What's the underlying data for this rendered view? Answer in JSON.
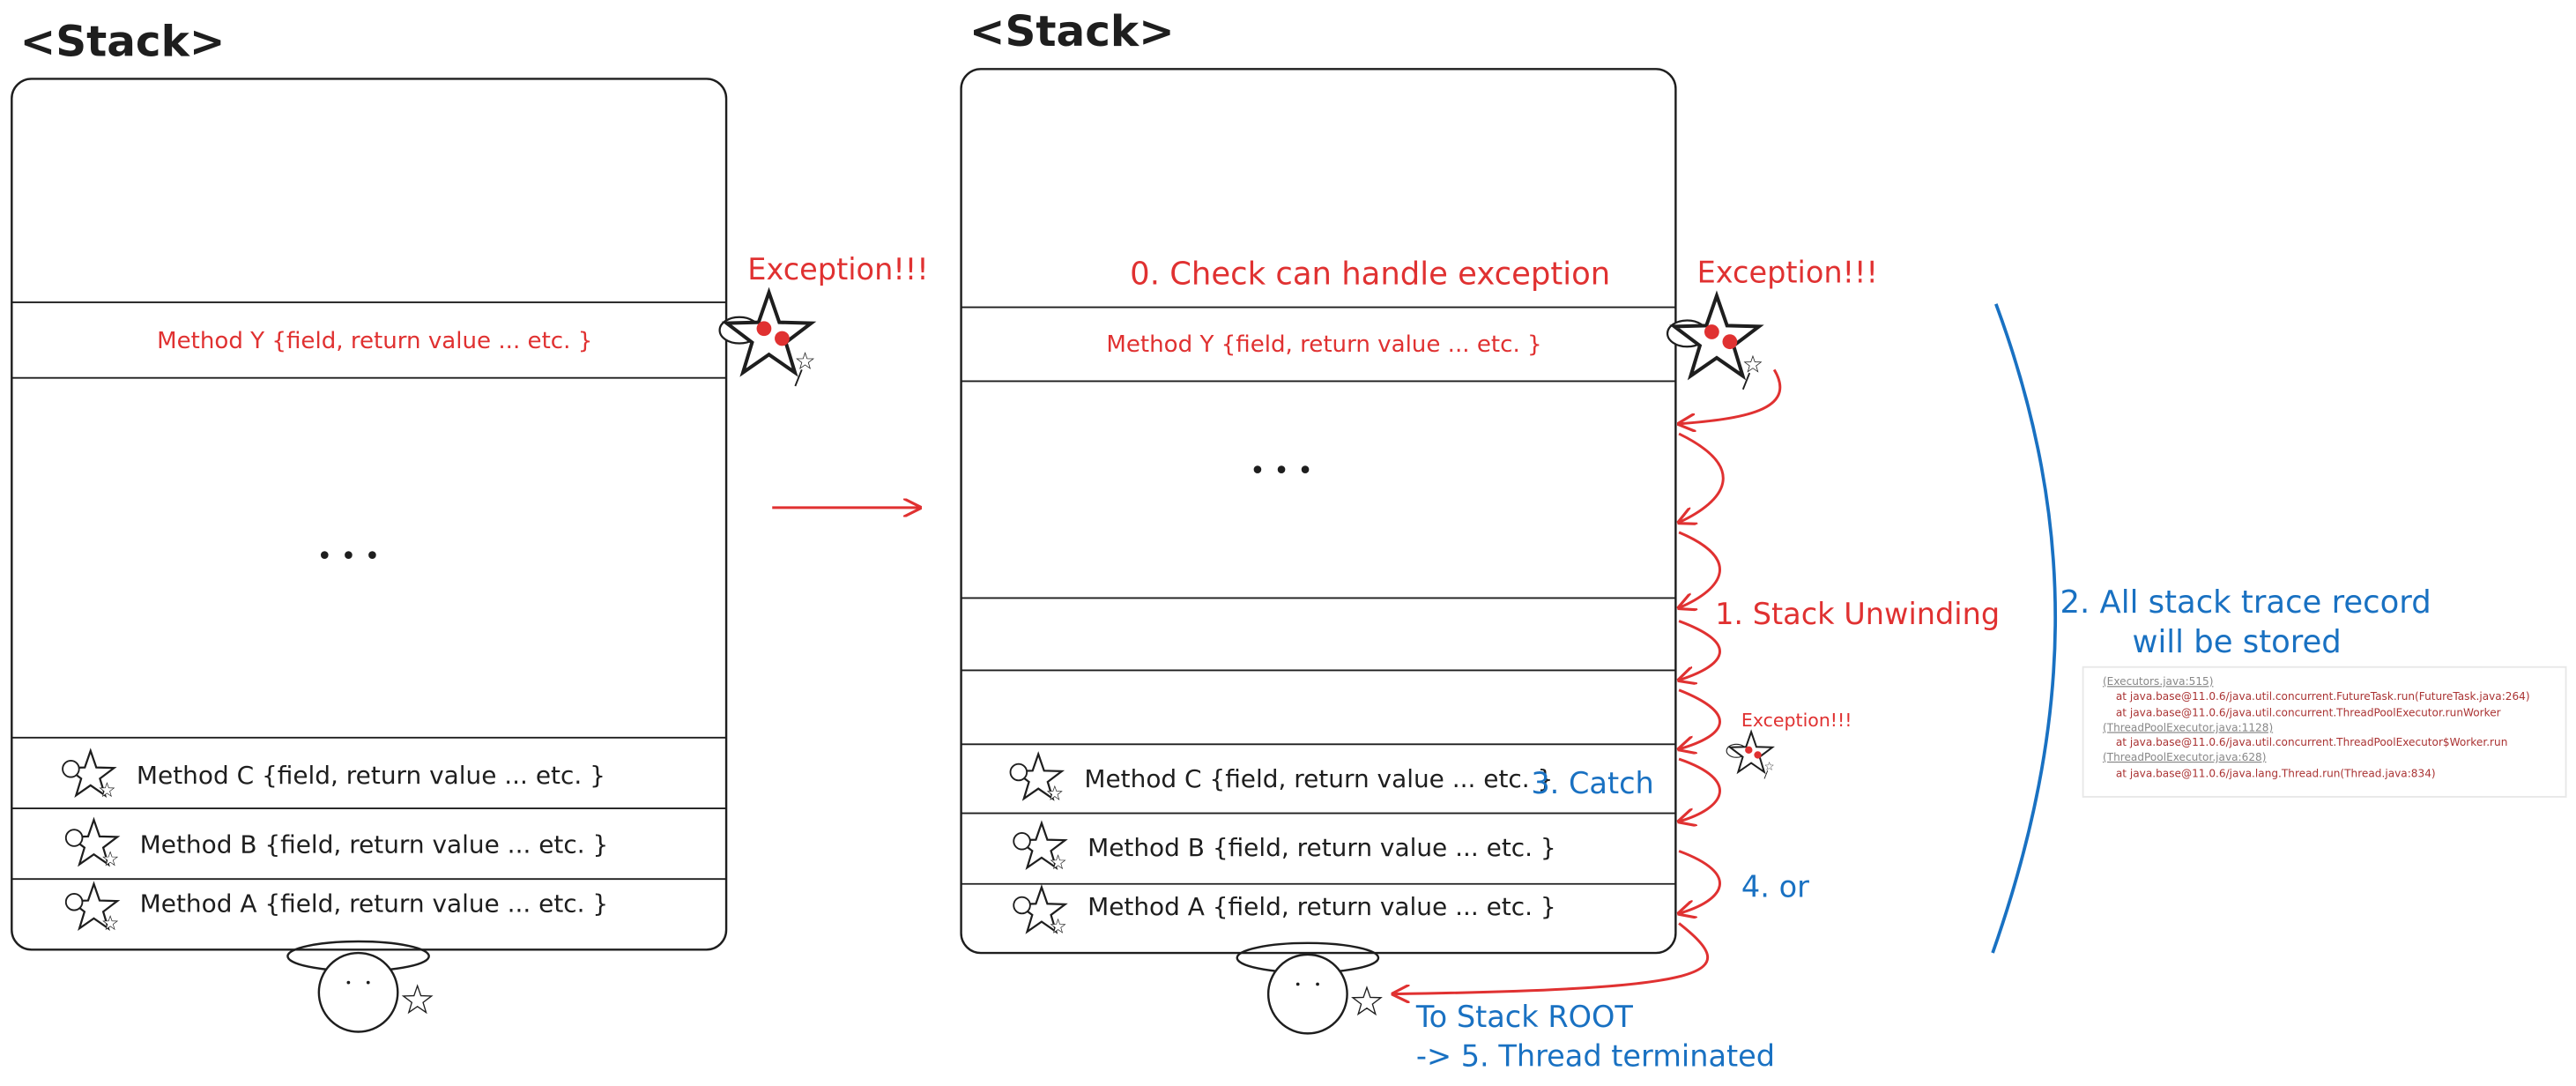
{
  "left_stack": {
    "title": "<Stack>",
    "exception": "Exception!!!",
    "ellipsis": "• • •",
    "frames": [
      "Method Y {field, return value ... etc. }",
      "Method C {field, return value ... etc. }",
      "Method B {field, return value ... etc. }",
      "Method A {field, return value ... etc. }"
    ]
  },
  "right_stack": {
    "title": "<Stack>",
    "exception": "Exception!!!",
    "ellipsis": "• • •",
    "frames": [
      "Method Y {field, return value ... etc. }",
      "Method C {field, return value ... etc. }",
      "Method B {field, return value ... etc. }",
      "Method A {field, return value ... etc. }"
    ]
  },
  "steps": {
    "check": "0. Check can handle exception",
    "unwinding": "1. Stack Unwinding",
    "stored": [
      "2. All stack trace record",
      "will be stored"
    ],
    "catch": "3. Catch",
    "catch_exception": "Exception!!!",
    "or": "4. or",
    "root": [
      "To Stack ROOT",
      "-> 5. Thread terminated"
    ]
  },
  "stack_trace": [
    "(Executors.java:515)",
    "at java.base@11.0.6/java.util.concurrent.FutureTask.run(FutureTask.java:264)",
    "at java.base@11.0.6/java.util.concurrent.ThreadPoolExecutor.runWorker",
    "(ThreadPoolExecutor.java:1128)",
    "at java.base@11.0.6/java.util.concurrent.ThreadPoolExecutor$Worker.run",
    "(ThreadPoolExecutor.java:628)",
    "at java.base@11.0.6/java.lang.Thread.run(Thread.java:834)"
  ]
}
